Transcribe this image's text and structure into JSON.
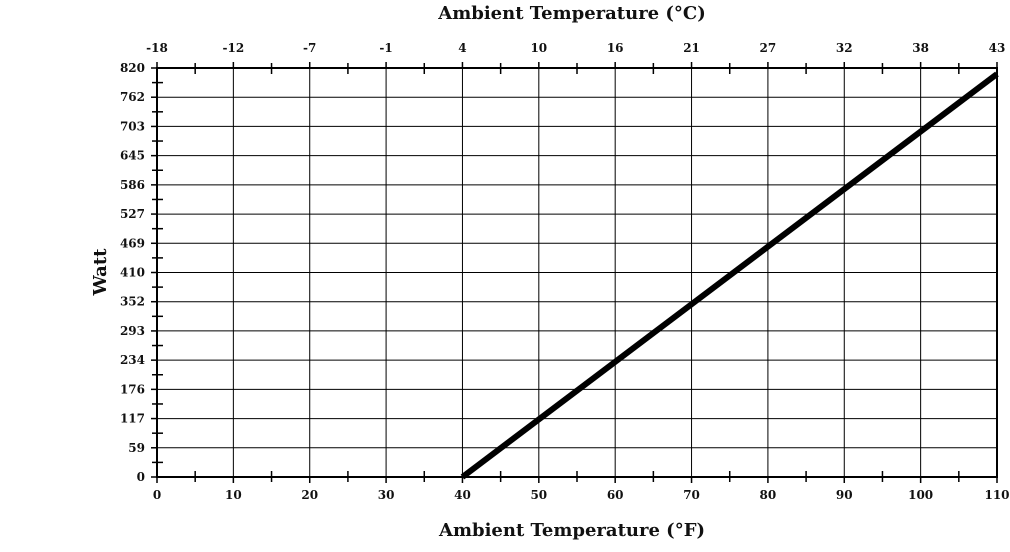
{
  "chart_data": {
    "type": "line",
    "title_top": "Ambient Temperature (°C)",
    "xlabel": "Ambient Temperature (°F)",
    "ylabel": "Watt",
    "xlim": [
      0,
      110
    ],
    "ylim": [
      0,
      820
    ],
    "x_ticks": [
      "0",
      "10",
      "20",
      "30",
      "40",
      "50",
      "60",
      "70",
      "80",
      "90",
      "100",
      "110"
    ],
    "x_top_ticks": [
      "-18",
      "-12",
      "-7",
      "-1",
      "4",
      "10",
      "16",
      "21",
      "27",
      "32",
      "38",
      "43"
    ],
    "y_ticks": [
      "0",
      "59",
      "117",
      "176",
      "234",
      "293",
      "352",
      "410",
      "469",
      "527",
      "586",
      "645",
      "703",
      "762",
      "820"
    ],
    "grid": true,
    "series": [
      {
        "x": [
          40,
          110
        ],
        "y": [
          0,
          808
        ],
        "color": "#000000"
      }
    ]
  }
}
